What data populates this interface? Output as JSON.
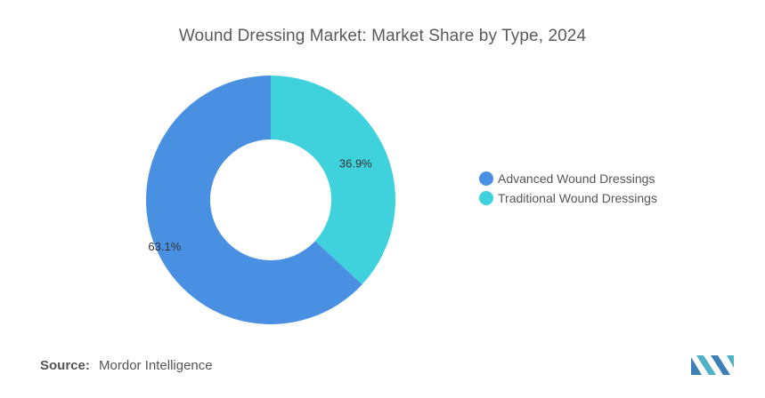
{
  "chart_data": {
    "type": "pie",
    "title": "Wound Dressing Market: Market Share by Type, 2024",
    "categories": [
      "Advanced Wound Dressings",
      "Traditional Wound Dressings"
    ],
    "values": [
      63.1,
      36.9
    ],
    "data_labels": [
      "63.1%",
      "36.9%"
    ],
    "colors": [
      "#4a90e2",
      "#40d2dc"
    ],
    "donut": true,
    "legend_position": "right"
  },
  "source": {
    "label": "Source:",
    "text": "Mordor Intelligence"
  },
  "logo": {
    "colors": [
      "#3e7fb6",
      "#4fb0c8"
    ]
  }
}
